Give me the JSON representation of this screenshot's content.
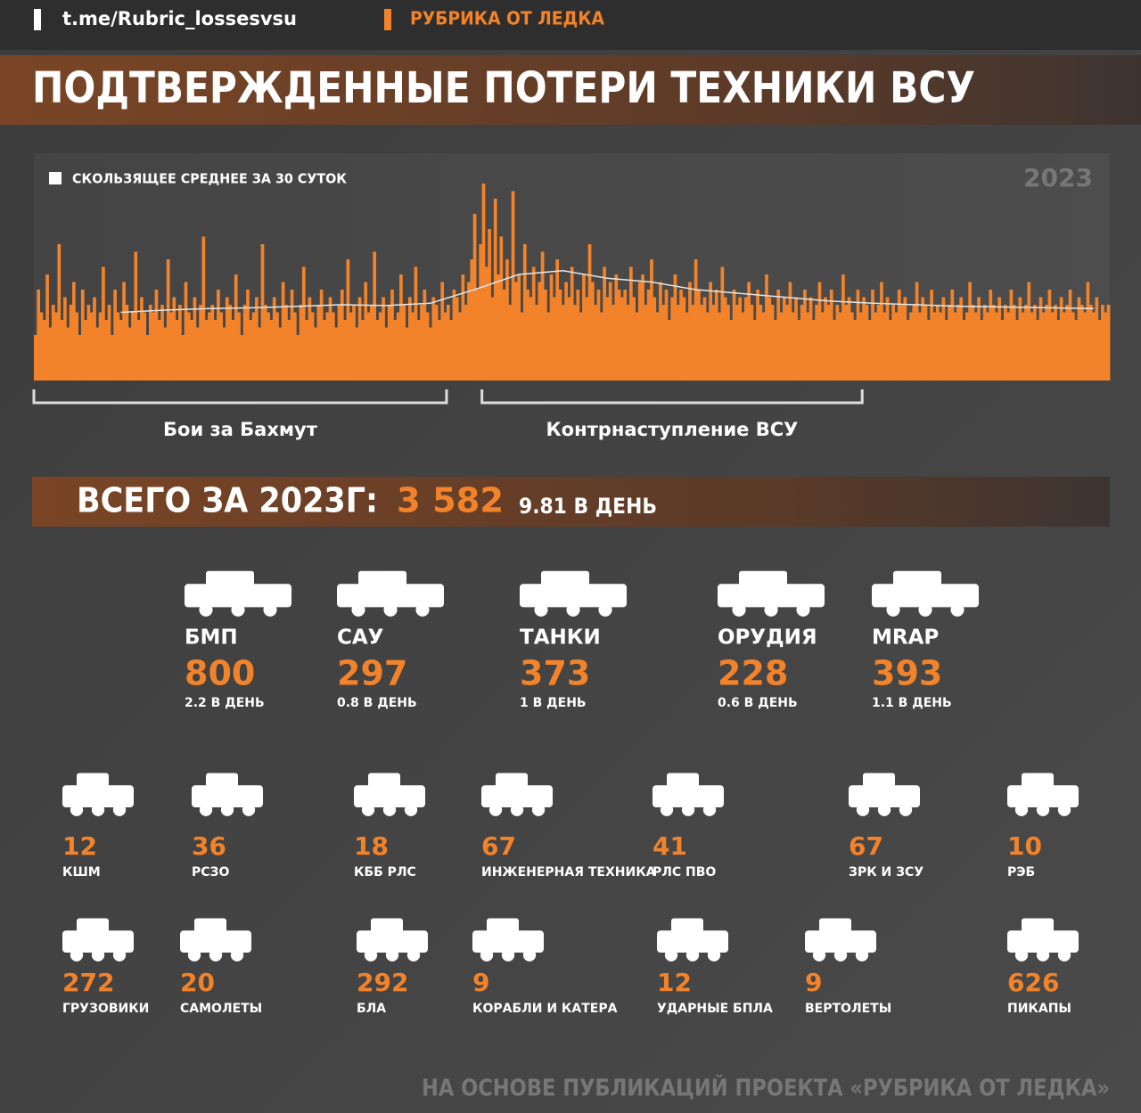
{
  "header": {
    "link": "t.me/Rubric_lossesvsu",
    "rubric": "РУБРИКА ОТ ЛЕДКА",
    "title": "ПОДТВЕРЖДЕННЫЕ ПОТЕРИ ТЕХНИКИ ВСУ"
  },
  "chart_data": {
    "type": "bar",
    "year": "2023",
    "color": "#f2832a",
    "ylim": [
      0,
      30
    ],
    "values": [
      6,
      12,
      9,
      8,
      14,
      7,
      10,
      9,
      18,
      8,
      11,
      7,
      10,
      13,
      9,
      6,
      12,
      8,
      10,
      9,
      11,
      7,
      9,
      15,
      8,
      10,
      6,
      12,
      9,
      8,
      13,
      10,
      7,
      9,
      17,
      8,
      11,
      9,
      6,
      10,
      9,
      12,
      8,
      10,
      7,
      16,
      9,
      11,
      8,
      10,
      6,
      13,
      9,
      8,
      11,
      7,
      10,
      19,
      8,
      9,
      10,
      8,
      12,
      9,
      7,
      11,
      10,
      8,
      14,
      9,
      6,
      10,
      12,
      8,
      9,
      11,
      7,
      18,
      10,
      9,
      8,
      11,
      9,
      7,
      13,
      10,
      8,
      12,
      9,
      6,
      10,
      15,
      8,
      11,
      9,
      7,
      10,
      12,
      8,
      9,
      11,
      9,
      7,
      10,
      12,
      8,
      16,
      9,
      10,
      7,
      11,
      8,
      13,
      9,
      10,
      17,
      8,
      9,
      11,
      7,
      10,
      12,
      8,
      9,
      14,
      10,
      7,
      11,
      9,
      15,
      8,
      10,
      12,
      9,
      7,
      11,
      10,
      8,
      13,
      9,
      10,
      8,
      12,
      11,
      9,
      14,
      10,
      13,
      16,
      22,
      12,
      18,
      26,
      15,
      20,
      11,
      24,
      14,
      19,
      12,
      16,
      10,
      25,
      13,
      14,
      9,
      18,
      12,
      11,
      15,
      10,
      13,
      17,
      12,
      9,
      14,
      11,
      16,
      12,
      10,
      13,
      11,
      15,
      10,
      12,
      9,
      14,
      11,
      18,
      13,
      10,
      12,
      9,
      15,
      11,
      13,
      10,
      14,
      12,
      11,
      12,
      10,
      15,
      11,
      9,
      13,
      14,
      10,
      12,
      16,
      11,
      9,
      13,
      10,
      12,
      8,
      11,
      14,
      10,
      12,
      11,
      9,
      13,
      10,
      16,
      12,
      10,
      11,
      9,
      13,
      10,
      12,
      9,
      15,
      11,
      10,
      8,
      12,
      10,
      11,
      9,
      11,
      13,
      10,
      8,
      12,
      10,
      9,
      14,
      11,
      10,
      8,
      12,
      9,
      11,
      10,
      13,
      9,
      11,
      8,
      10,
      12,
      9,
      11,
      8,
      10,
      13,
      9,
      11,
      10,
      12,
      8,
      10,
      9,
      14,
      10,
      11,
      9,
      8,
      12,
      9,
      11,
      10,
      8,
      12,
      9,
      10,
      13,
      9,
      11,
      8,
      10,
      9,
      12,
      10,
      11,
      8,
      9,
      10,
      13,
      9,
      11,
      10,
      8,
      12,
      9,
      10,
      9,
      11,
      8,
      10,
      12,
      9,
      10,
      11,
      8,
      9,
      13,
      10,
      9,
      11,
      8,
      10,
      9,
      12,
      10,
      9,
      11,
      8,
      10,
      9,
      12,
      10,
      8,
      11,
      9,
      10,
      13,
      9,
      10,
      8,
      11,
      9,
      10,
      12,
      9,
      10,
      8,
      11,
      9,
      10,
      12,
      9,
      8,
      11,
      10,
      9,
      13,
      10,
      9,
      11,
      8,
      10,
      9,
      10
    ],
    "series": [
      {
        "name": "СКОЛЬЗЯЩЕЕ СРЕДНЕЕ ЗА 30 СУТОК",
        "type": "line",
        "color": "#e6e6e6",
        "x": [
          30,
          45,
          60,
          75,
          90,
          105,
          120,
          135,
          150,
          165,
          180,
          195,
          210,
          225,
          240,
          255,
          270,
          285,
          300,
          315,
          330,
          345,
          360
        ],
        "values": [
          9,
          9.3,
          9.5,
          9.6,
          9.8,
          10,
          9.9,
          10.2,
          12,
          14,
          14.5,
          13.5,
          13,
          12,
          11.5,
          11,
          10.5,
          10.2,
          10,
          9.8,
          9.7,
          9.6,
          9.5
        ]
      }
    ],
    "annotations": [
      {
        "text": "Бои за Бахмут",
        "range": [
          1,
          140
        ]
      },
      {
        "text": "Контрнаступление ВСУ",
        "range": [
          153,
          281
        ]
      }
    ]
  },
  "total": {
    "label": "ВСЕГО ЗА 2023Г:",
    "value": "3 582",
    "per_day": "9.81 В ДЕНЬ"
  },
  "main_items": [
    {
      "name": "БМП",
      "count": "800",
      "per_day": "2.2 В ДЕНЬ"
    },
    {
      "name": "САУ",
      "count": "297",
      "per_day": "0.8 В ДЕНЬ"
    },
    {
      "name": "ТАНКИ",
      "count": "373",
      "per_day": "1 В ДЕНЬ"
    },
    {
      "name": "ОРУДИЯ",
      "count": "228",
      "per_day": "0.6 В ДЕНЬ"
    },
    {
      "name": "MRAP",
      "count": "393",
      "per_day": "1.1 В ДЕНЬ"
    }
  ],
  "other_items": [
    {
      "name": "КШМ",
      "count": "12"
    },
    {
      "name": "РСЗО",
      "count": "36"
    },
    {
      "name": "КББ РЛС",
      "count": "18"
    },
    {
      "name": "ИНЖЕНЕРНАЯ ТЕХНИКА",
      "count": "67"
    },
    {
      "name": "РЛС ПВО",
      "count": "41"
    },
    {
      "name": "ЗРК И ЗСУ",
      "count": "67"
    },
    {
      "name": "РЭБ",
      "count": "10"
    },
    {
      "name": "ГРУЗОВИКИ",
      "count": "272"
    },
    {
      "name": "САМОЛЕТЫ",
      "count": "20"
    },
    {
      "name": "БЛА",
      "count": "292"
    },
    {
      "name": "КОРАБЛИ И КАТЕРА",
      "count": "9"
    },
    {
      "name": "УДАРНЫЕ БПЛА",
      "count": "12"
    },
    {
      "name": "ВЕРТОЛЕТЫ",
      "count": "9"
    },
    {
      "name": "ПИКАПЫ",
      "count": "626"
    }
  ],
  "footer": "НА ОСНОВЕ ПУБЛИКАЦИЙ ПРОЕКТА «РУБРИКА ОТ ЛЕДКА»"
}
